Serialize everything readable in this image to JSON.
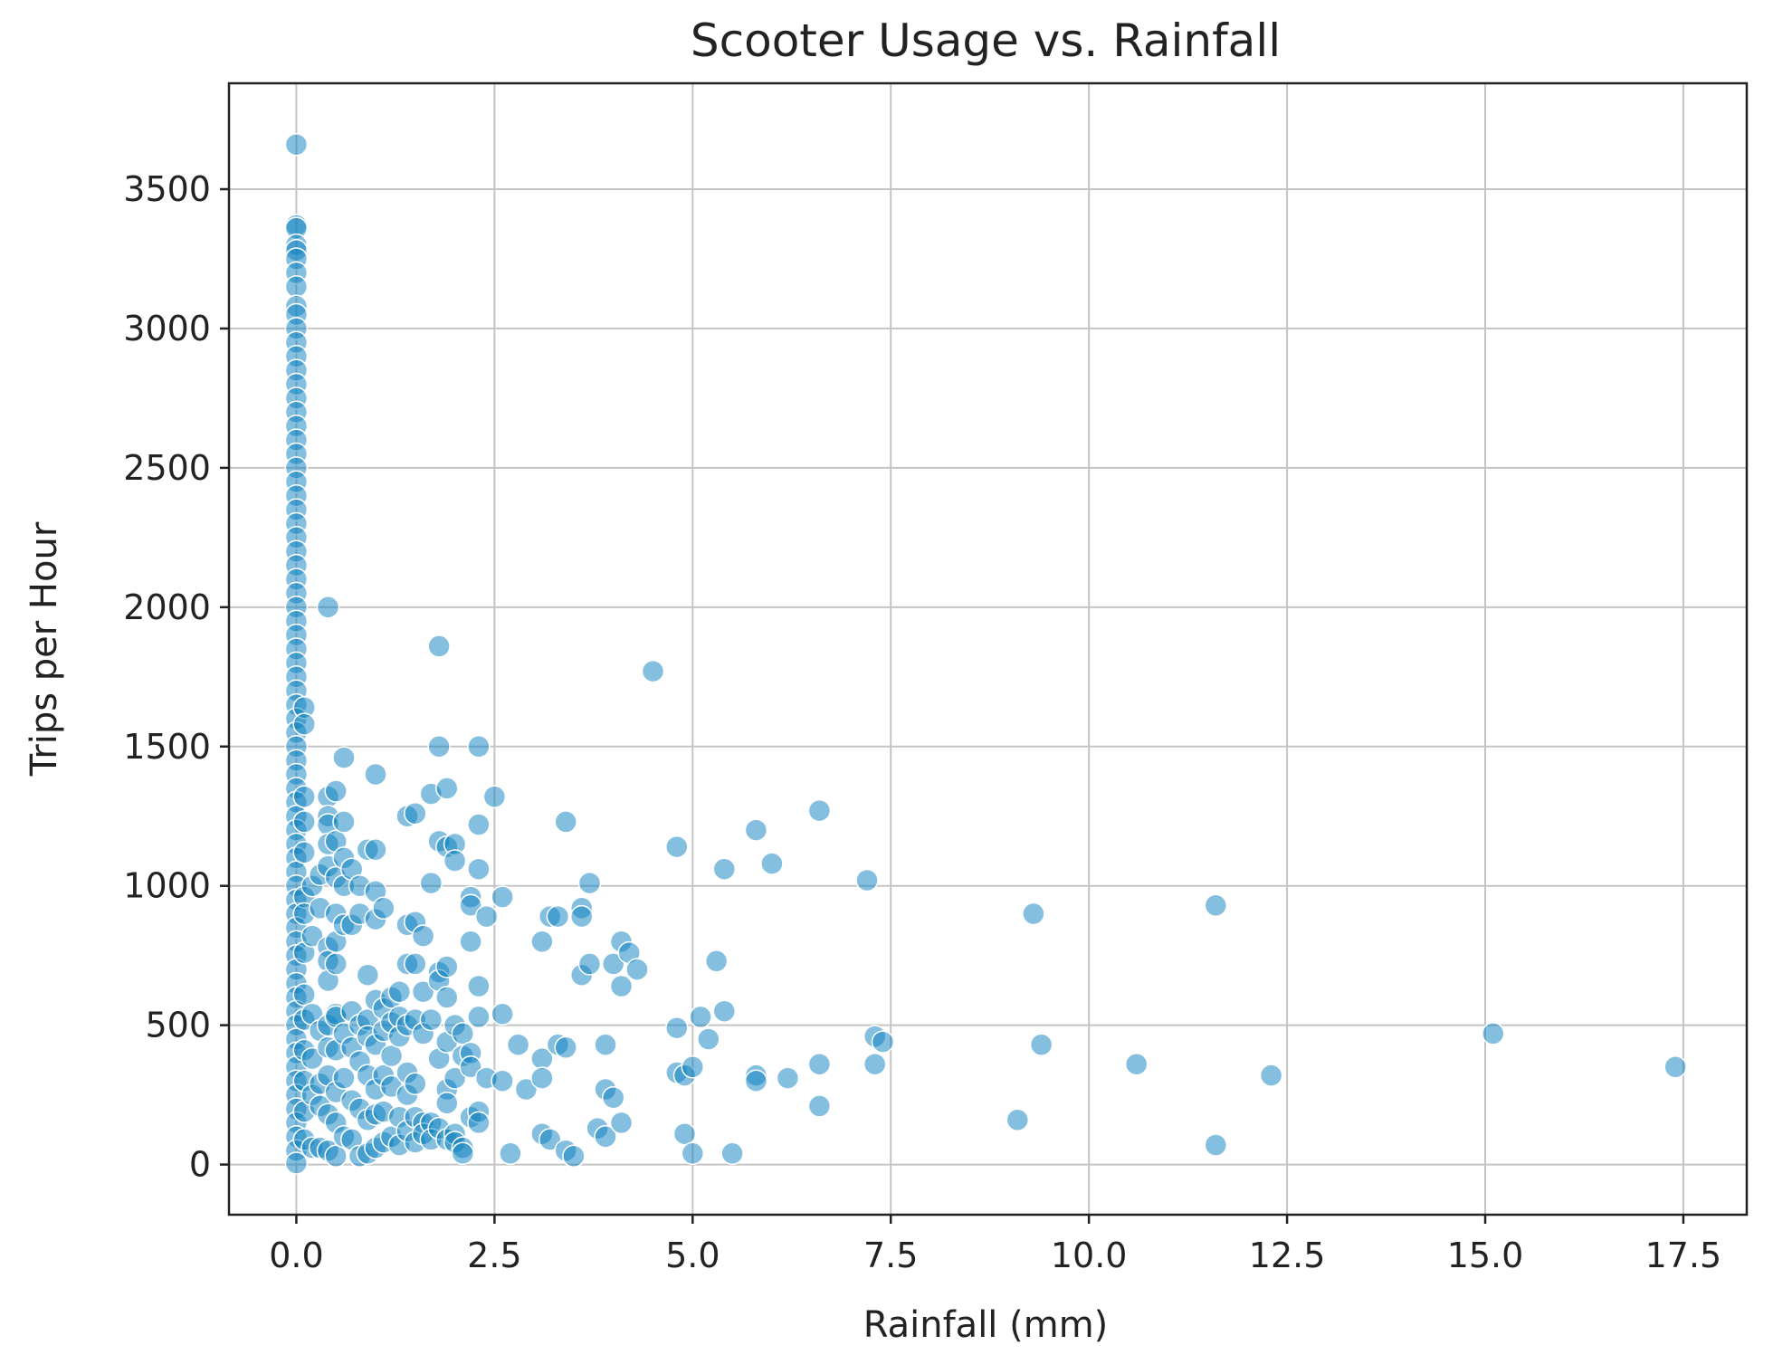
{
  "chart_data": {
    "type": "scatter",
    "title": "Scooter Usage vs. Rainfall",
    "xlabel": "Rainfall (mm)",
    "ylabel": "Trips per Hour",
    "xlim": [
      -0.85,
      18.3
    ],
    "ylim": [
      -180,
      3880
    ],
    "x_ticks": [
      0,
      2.5,
      5,
      7.5,
      10,
      12.5,
      15,
      17.5
    ],
    "x_tick_labels": [
      "0.0",
      "2.5",
      "5.0",
      "7.5",
      "10.0",
      "12.5",
      "15.0",
      "17.5"
    ],
    "y_ticks": [
      0,
      500,
      1000,
      1500,
      2000,
      2500,
      3000,
      3500
    ],
    "y_tick_labels": [
      "0",
      "500",
      "1000",
      "1500",
      "2000",
      "2500",
      "3000",
      "3500"
    ],
    "grid": true,
    "legend": "none",
    "point_color": "#0a7fc0",
    "point_opacity": 0.5,
    "points": [
      [
        0,
        3660
      ],
      [
        0,
        3370
      ],
      [
        0,
        3360
      ],
      [
        0,
        3300
      ],
      [
        0,
        3280
      ],
      [
        0,
        3250
      ],
      [
        0,
        3200
      ],
      [
        0,
        3150
      ],
      [
        0,
        3080
      ],
      [
        0,
        3050
      ],
      [
        0,
        3000
      ],
      [
        0,
        2950
      ],
      [
        0,
        2900
      ],
      [
        0,
        2850
      ],
      [
        0,
        2800
      ],
      [
        0,
        2750
      ],
      [
        0,
        2700
      ],
      [
        0,
        2650
      ],
      [
        0,
        2600
      ],
      [
        0,
        2550
      ],
      [
        0,
        2500
      ],
      [
        0,
        2450
      ],
      [
        0,
        2400
      ],
      [
        0,
        2350
      ],
      [
        0,
        2300
      ],
      [
        0,
        2250
      ],
      [
        0,
        2200
      ],
      [
        0,
        2150
      ],
      [
        0,
        2100
      ],
      [
        0,
        2050
      ],
      [
        0,
        2000
      ],
      [
        0,
        1950
      ],
      [
        0,
        1900
      ],
      [
        0,
        1850
      ],
      [
        0,
        1800
      ],
      [
        0,
        1750
      ],
      [
        0,
        1700
      ],
      [
        0,
        1650
      ],
      [
        0,
        1600
      ],
      [
        0,
        1550
      ],
      [
        0,
        1500
      ],
      [
        0,
        1450
      ],
      [
        0,
        1400
      ],
      [
        0,
        1350
      ],
      [
        0,
        1300
      ],
      [
        0,
        1250
      ],
      [
        0,
        1200
      ],
      [
        0,
        1150
      ],
      [
        0,
        1100
      ],
      [
        0,
        1050
      ],
      [
        0,
        1000
      ],
      [
        0,
        950
      ],
      [
        0,
        900
      ],
      [
        0,
        850
      ],
      [
        0,
        800
      ],
      [
        0,
        750
      ],
      [
        0,
        700
      ],
      [
        0,
        650
      ],
      [
        0,
        600
      ],
      [
        0,
        550
      ],
      [
        0,
        500
      ],
      [
        0,
        450
      ],
      [
        0,
        400
      ],
      [
        0,
        350
      ],
      [
        0,
        300
      ],
      [
        0,
        250
      ],
      [
        0,
        200
      ],
      [
        0,
        150
      ],
      [
        0,
        100
      ],
      [
        0,
        50
      ],
      [
        0,
        5
      ],
      [
        0.1,
        1640
      ],
      [
        0.1,
        1580
      ],
      [
        0.1,
        1320
      ],
      [
        0.1,
        1230
      ],
      [
        0.1,
        1120
      ],
      [
        0.1,
        960
      ],
      [
        0.1,
        900
      ],
      [
        0.1,
        760
      ],
      [
        0.1,
        610
      ],
      [
        0.1,
        520
      ],
      [
        0.1,
        410
      ],
      [
        0.1,
        300
      ],
      [
        0.1,
        190
      ],
      [
        0.1,
        90
      ],
      [
        0.2,
        1000
      ],
      [
        0.2,
        820
      ],
      [
        0.2,
        540
      ],
      [
        0.2,
        380
      ],
      [
        0.2,
        250
      ],
      [
        0.2,
        60
      ],
      [
        0.3,
        1040
      ],
      [
        0.3,
        920
      ],
      [
        0.3,
        480
      ],
      [
        0.3,
        290
      ],
      [
        0.3,
        210
      ],
      [
        0.3,
        60
      ],
      [
        0.4,
        2000
      ],
      [
        0.4,
        1320
      ],
      [
        0.4,
        1250
      ],
      [
        0.4,
        1220
      ],
      [
        0.4,
        1150
      ],
      [
        0.4,
        1070
      ],
      [
        0.4,
        780
      ],
      [
        0.4,
        730
      ],
      [
        0.4,
        660
      ],
      [
        0.4,
        500
      ],
      [
        0.4,
        420
      ],
      [
        0.4,
        320
      ],
      [
        0.4,
        180
      ],
      [
        0.4,
        50
      ],
      [
        0.5,
        1340
      ],
      [
        0.5,
        1160
      ],
      [
        0.5,
        1030
      ],
      [
        0.5,
        900
      ],
      [
        0.5,
        800
      ],
      [
        0.5,
        720
      ],
      [
        0.5,
        540
      ],
      [
        0.5,
        530
      ],
      [
        0.5,
        410
      ],
      [
        0.5,
        260
      ],
      [
        0.5,
        150
      ],
      [
        0.5,
        30
      ],
      [
        0.6,
        1460
      ],
      [
        0.6,
        1230
      ],
      [
        0.6,
        1100
      ],
      [
        0.6,
        1000
      ],
      [
        0.6,
        860
      ],
      [
        0.6,
        470
      ],
      [
        0.6,
        310
      ],
      [
        0.6,
        100
      ],
      [
        0.7,
        1060
      ],
      [
        0.7,
        860
      ],
      [
        0.7,
        550
      ],
      [
        0.7,
        420
      ],
      [
        0.7,
        230
      ],
      [
        0.7,
        90
      ],
      [
        0.8,
        1000
      ],
      [
        0.8,
        900
      ],
      [
        0.8,
        500
      ],
      [
        0.8,
        370
      ],
      [
        0.8,
        200
      ],
      [
        0.8,
        30
      ],
      [
        0.9,
        1130
      ],
      [
        0.9,
        680
      ],
      [
        0.9,
        520
      ],
      [
        0.9,
        460
      ],
      [
        0.9,
        320
      ],
      [
        0.9,
        160
      ],
      [
        0.9,
        40
      ],
      [
        1.0,
        1400
      ],
      [
        1.0,
        1130
      ],
      [
        1.0,
        980
      ],
      [
        1.0,
        880
      ],
      [
        1.0,
        590
      ],
      [
        1.0,
        430
      ],
      [
        1.0,
        270
      ],
      [
        1.0,
        180
      ],
      [
        1.0,
        60
      ],
      [
        1.1,
        920
      ],
      [
        1.1,
        560
      ],
      [
        1.1,
        480
      ],
      [
        1.1,
        320
      ],
      [
        1.1,
        190
      ],
      [
        1.1,
        80
      ],
      [
        1.2,
        600
      ],
      [
        1.2,
        510
      ],
      [
        1.2,
        390
      ],
      [
        1.2,
        280
      ],
      [
        1.2,
        100
      ],
      [
        1.3,
        620
      ],
      [
        1.3,
        530
      ],
      [
        1.3,
        460
      ],
      [
        1.3,
        170
      ],
      [
        1.3,
        70
      ],
      [
        1.4,
        1250
      ],
      [
        1.4,
        860
      ],
      [
        1.4,
        720
      ],
      [
        1.4,
        500
      ],
      [
        1.4,
        330
      ],
      [
        1.4,
        250
      ],
      [
        1.4,
        120
      ],
      [
        1.5,
        1260
      ],
      [
        1.5,
        870
      ],
      [
        1.5,
        720
      ],
      [
        1.5,
        520
      ],
      [
        1.5,
        290
      ],
      [
        1.5,
        170
      ],
      [
        1.5,
        80
      ],
      [
        1.6,
        820
      ],
      [
        1.6,
        620
      ],
      [
        1.6,
        470
      ],
      [
        1.6,
        150
      ],
      [
        1.6,
        110
      ],
      [
        1.7,
        1330
      ],
      [
        1.7,
        1010
      ],
      [
        1.7,
        520
      ],
      [
        1.7,
        150
      ],
      [
        1.7,
        90
      ],
      [
        1.8,
        1860
      ],
      [
        1.8,
        1500
      ],
      [
        1.8,
        1160
      ],
      [
        1.8,
        690
      ],
      [
        1.8,
        660
      ],
      [
        1.8,
        380
      ],
      [
        1.8,
        130
      ],
      [
        1.9,
        1350
      ],
      [
        1.9,
        1140
      ],
      [
        1.9,
        710
      ],
      [
        1.9,
        600
      ],
      [
        1.9,
        440
      ],
      [
        1.9,
        270
      ],
      [
        1.9,
        220
      ],
      [
        1.9,
        90
      ],
      [
        2.0,
        1150
      ],
      [
        2.0,
        1090
      ],
      [
        2.0,
        500
      ],
      [
        2.0,
        310
      ],
      [
        2.0,
        110
      ],
      [
        2.0,
        80
      ],
      [
        2.1,
        470
      ],
      [
        2.1,
        390
      ],
      [
        2.1,
        60
      ],
      [
        2.1,
        40
      ],
      [
        2.2,
        960
      ],
      [
        2.2,
        930
      ],
      [
        2.2,
        800
      ],
      [
        2.2,
        400
      ],
      [
        2.2,
        350
      ],
      [
        2.2,
        170
      ],
      [
        2.3,
        1500
      ],
      [
        2.3,
        1220
      ],
      [
        2.3,
        1060
      ],
      [
        2.3,
        640
      ],
      [
        2.3,
        530
      ],
      [
        2.3,
        190
      ],
      [
        2.3,
        150
      ],
      [
        2.4,
        890
      ],
      [
        2.4,
        310
      ],
      [
        2.5,
        1320
      ],
      [
        2.6,
        960
      ],
      [
        2.6,
        540
      ],
      [
        2.6,
        300
      ],
      [
        2.7,
        40
      ],
      [
        2.8,
        430
      ],
      [
        2.9,
        270
      ],
      [
        3.1,
        800
      ],
      [
        3.1,
        380
      ],
      [
        3.1,
        310
      ],
      [
        3.1,
        110
      ],
      [
        3.2,
        890
      ],
      [
        3.2,
        90
      ],
      [
        3.3,
        890
      ],
      [
        3.3,
        430
      ],
      [
        3.4,
        1230
      ],
      [
        3.4,
        420
      ],
      [
        3.4,
        50
      ],
      [
        3.5,
        30
      ],
      [
        3.6,
        920
      ],
      [
        3.6,
        890
      ],
      [
        3.6,
        680
      ],
      [
        3.7,
        1010
      ],
      [
        3.7,
        720
      ],
      [
        3.8,
        130
      ],
      [
        3.9,
        430
      ],
      [
        3.9,
        270
      ],
      [
        3.9,
        100
      ],
      [
        4.0,
        720
      ],
      [
        4.0,
        240
      ],
      [
        4.1,
        800
      ],
      [
        4.1,
        640
      ],
      [
        4.1,
        150
      ],
      [
        4.2,
        760
      ],
      [
        4.3,
        700
      ],
      [
        4.5,
        1770
      ],
      [
        4.8,
        1140
      ],
      [
        4.8,
        490
      ],
      [
        4.8,
        330
      ],
      [
        4.9,
        320
      ],
      [
        4.9,
        110
      ],
      [
        5.0,
        350
      ],
      [
        5.0,
        40
      ],
      [
        5.1,
        530
      ],
      [
        5.2,
        450
      ],
      [
        5.3,
        730
      ],
      [
        5.4,
        1060
      ],
      [
        5.4,
        550
      ],
      [
        5.5,
        40
      ],
      [
        5.8,
        1200
      ],
      [
        5.8,
        320
      ],
      [
        5.8,
        300
      ],
      [
        6.0,
        1080
      ],
      [
        6.2,
        310
      ],
      [
        6.6,
        1270
      ],
      [
        6.6,
        360
      ],
      [
        6.6,
        210
      ],
      [
        7.2,
        1020
      ],
      [
        7.3,
        460
      ],
      [
        7.3,
        360
      ],
      [
        7.4,
        440
      ],
      [
        9.1,
        160
      ],
      [
        9.3,
        900
      ],
      [
        9.4,
        430
      ],
      [
        10.6,
        360
      ],
      [
        11.6,
        930
      ],
      [
        11.6,
        70
      ],
      [
        12.3,
        320
      ],
      [
        15.1,
        470
      ],
      [
        17.4,
        350
      ]
    ]
  }
}
